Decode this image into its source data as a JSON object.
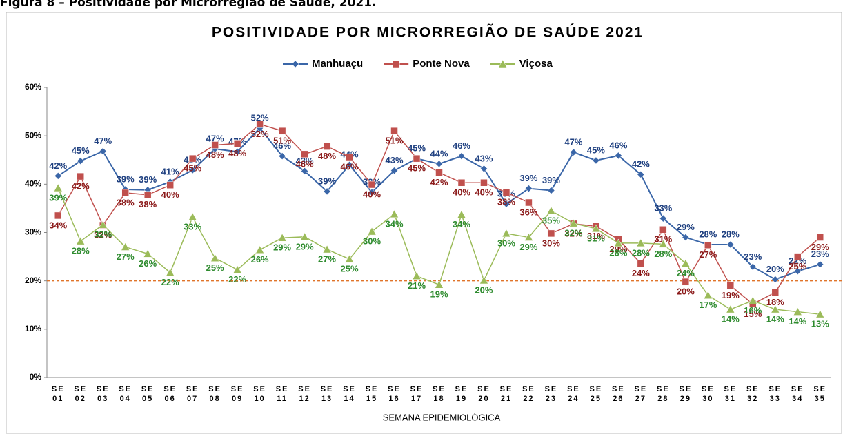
{
  "caption": "Figura 8 – Positividade por Microrregião de Saúde, 2021.",
  "chart_data": {
    "type": "line",
    "title": "POSITIVIDADE POR MICRORREGIÃO DE SAÚDE 2021",
    "x_label": "SEMANA EPIDEMIOLÓGICA",
    "categories": [
      "SE 01",
      "SE 02",
      "SE 03",
      "SE 04",
      "SE 05",
      "SE 06",
      "SE 07",
      "SE 08",
      "SE 09",
      "SE 10",
      "SE 11",
      "SE 12",
      "SE 13",
      "SE 14",
      "SE 15",
      "SE 16",
      "SE 17",
      "SE 18",
      "SE 19",
      "SE 20",
      "SE 21",
      "SE 22",
      "SE 23",
      "SE 24",
      "SE 25",
      "SE 26",
      "SE 27",
      "SE 28",
      "SE 29",
      "SE 30",
      "SE 31",
      "SE 32",
      "SE 33",
      "SE 34",
      "SE 35"
    ],
    "ylim": [
      0,
      60
    ],
    "yticks": [
      {
        "value": 0,
        "label": "0%"
      },
      {
        "value": 10,
        "label": "10%"
      },
      {
        "value": 20,
        "label": "20%"
      },
      {
        "value": 30,
        "label": "30%"
      },
      {
        "value": 40,
        "label": "40%"
      },
      {
        "value": 50,
        "label": "50%"
      },
      {
        "value": 60,
        "label": "60%"
      }
    ],
    "reference_line": {
      "value": 20,
      "color": "#e0742a"
    },
    "legend": "top",
    "series": [
      {
        "name": "Manhuaçu",
        "color": "#3a66a8",
        "label_color": "#1f4080",
        "marker": "diamond",
        "values": [
          41.7,
          44.8,
          46.8,
          38.9,
          38.8,
          40.5,
          42.9,
          47.3,
          46.7,
          51.6,
          45.8,
          42.7,
          38.5,
          44.0,
          38.3,
          42.8,
          45.3,
          44.2,
          45.8,
          43.2,
          35.9,
          39.1,
          38.7,
          46.6,
          44.9,
          45.9,
          42.0,
          32.9,
          29.0,
          27.5,
          27.5,
          22.9,
          20.3,
          22.0,
          23.4
        ],
        "value_labels": [
          "42%",
          "45%",
          "47%",
          "39%",
          "39%",
          "41%",
          "43%",
          "47%",
          "47%",
          "52%",
          "46%",
          "43%",
          "39%",
          "44%",
          "38%",
          "43%",
          "45%",
          "44%",
          "46%",
          "43%",
          "36%",
          "39%",
          "39%",
          "47%",
          "45%",
          "46%",
          "42%",
          "33%",
          "29%",
          "28%",
          "28%",
          "23%",
          "20%",
          "22%",
          "23%"
        ]
      },
      {
        "name": "Ponte Nova",
        "color": "#c0504d",
        "label_color": "#8b1a1a",
        "marker": "square",
        "values": [
          33.5,
          41.6,
          31.5,
          38.2,
          37.8,
          39.8,
          45.3,
          48.1,
          48.4,
          52.4,
          51.0,
          46.2,
          47.8,
          45.6,
          39.9,
          51.0,
          45.3,
          42.4,
          40.3,
          40.3,
          38.3,
          36.2,
          29.8,
          31.8,
          31.3,
          28.6,
          23.6,
          30.6,
          19.8,
          27.4,
          19.0,
          15.2,
          17.6,
          25.0,
          29.0
        ],
        "value_labels": [
          "34%",
          "42%",
          "32%",
          "38%",
          "38%",
          "40%",
          "45%",
          "48%",
          "48%",
          "52%",
          "51%",
          "46%",
          "48%",
          "46%",
          "40%",
          "51%",
          "45%",
          "42%",
          "40%",
          "40%",
          "38%",
          "36%",
          "30%",
          "32%",
          "31%",
          "29%",
          "24%",
          "31%",
          "20%",
          "27%",
          "19%",
          "15%",
          "18%",
          "25%",
          "29%"
        ]
      },
      {
        "name": "Viçosa",
        "color": "#9bbb59",
        "label_color": "#2e8b2e",
        "marker": "triangle",
        "values": [
          39.2,
          28.2,
          31.6,
          27.0,
          25.6,
          21.7,
          33.2,
          24.7,
          22.3,
          26.4,
          28.9,
          29.1,
          26.5,
          24.5,
          30.2,
          33.8,
          21.0,
          19.2,
          33.7,
          20.1,
          29.8,
          29.0,
          34.5,
          31.9,
          30.8,
          27.8,
          27.8,
          27.6,
          23.6,
          17.0,
          14.1,
          15.9,
          14.1,
          13.6,
          13.1
        ],
        "value_labels": [
          "39%",
          "28%",
          "32%",
          "27%",
          "26%",
          "22%",
          "33%",
          "25%",
          "22%",
          "26%",
          "29%",
          "29%",
          "27%",
          "25%",
          "30%",
          "34%",
          "21%",
          "19%",
          "34%",
          "20%",
          "30%",
          "29%",
          "35%",
          "32%",
          "31%",
          "28%",
          "28%",
          "28%",
          "24%",
          "17%",
          "14%",
          "16%",
          "14%",
          "14%",
          "13%"
        ]
      }
    ]
  }
}
